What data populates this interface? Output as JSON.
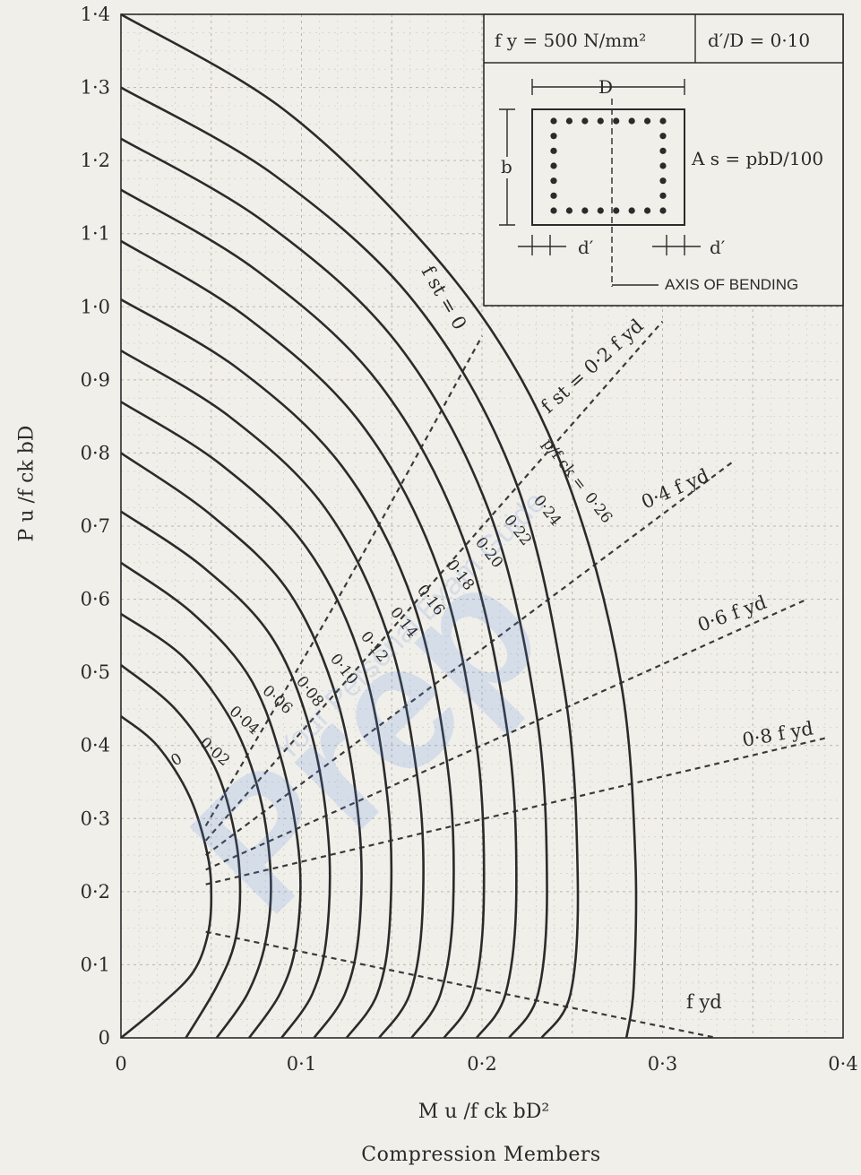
{
  "chart_data": {
    "type": "line",
    "title": "",
    "xlabel": "M_u/f_ck bD²",
    "ylabel": "P_u/f_ck bD",
    "xlim": [
      0,
      0.4
    ],
    "ylim": [
      0,
      1.4
    ],
    "x_ticks": [
      "0",
      "0·1",
      "0·2",
      "0·3",
      "0·4"
    ],
    "y_ticks": [
      "0",
      "0·1",
      "0·2",
      "0·3",
      "0·4",
      "0·5",
      "0·6",
      "0·7",
      "0·8",
      "0·9",
      "1·0",
      "1·1",
      "1·2",
      "1·3",
      "1·4"
    ],
    "grid": true,
    "series": [
      {
        "name": "0",
        "points": [
          [
            0,
            0.44
          ],
          [
            0.02,
            0.4
          ],
          [
            0.038,
            0.33
          ],
          [
            0.048,
            0.25
          ],
          [
            0.05,
            0.19
          ],
          [
            0.048,
            0.14
          ],
          [
            0.04,
            0.09
          ],
          [
            0.022,
            0.045
          ],
          [
            0,
            0
          ]
        ]
      },
      {
        "name": "0·02",
        "points": [
          [
            0,
            0.51
          ],
          [
            0.03,
            0.45
          ],
          [
            0.052,
            0.37
          ],
          [
            0.063,
            0.28
          ],
          [
            0.066,
            0.2
          ],
          [
            0.063,
            0.13
          ],
          [
            0.053,
            0.07
          ],
          [
            0.036,
            0
          ]
        ]
      },
      {
        "name": "0·04",
        "points": [
          [
            0,
            0.58
          ],
          [
            0.035,
            0.52
          ],
          [
            0.062,
            0.43
          ],
          [
            0.077,
            0.33
          ],
          [
            0.083,
            0.22
          ],
          [
            0.08,
            0.13
          ],
          [
            0.07,
            0.06
          ],
          [
            0.053,
            0
          ]
        ]
      },
      {
        "name": "0·06",
        "points": [
          [
            0,
            0.65
          ],
          [
            0.04,
            0.58
          ],
          [
            0.072,
            0.49
          ],
          [
            0.09,
            0.37
          ],
          [
            0.099,
            0.24
          ],
          [
            0.097,
            0.13
          ],
          [
            0.088,
            0.06
          ],
          [
            0.071,
            0
          ]
        ]
      },
      {
        "name": "0·08",
        "points": [
          [
            0,
            0.72
          ],
          [
            0.045,
            0.645
          ],
          [
            0.083,
            0.55
          ],
          [
            0.105,
            0.42
          ],
          [
            0.115,
            0.27
          ],
          [
            0.114,
            0.14
          ],
          [
            0.106,
            0.06
          ],
          [
            0.089,
            0
          ]
        ]
      },
      {
        "name": "0·10",
        "points": [
          [
            0,
            0.8
          ],
          [
            0.05,
            0.715
          ],
          [
            0.093,
            0.61
          ],
          [
            0.12,
            0.46
          ],
          [
            0.132,
            0.29
          ],
          [
            0.132,
            0.15
          ],
          [
            0.124,
            0.06
          ],
          [
            0.107,
            0
          ]
        ]
      },
      {
        "name": "0·12",
        "points": [
          [
            0,
            0.87
          ],
          [
            0.055,
            0.785
          ],
          [
            0.103,
            0.67
          ],
          [
            0.134,
            0.51
          ],
          [
            0.148,
            0.32
          ],
          [
            0.149,
            0.16
          ],
          [
            0.142,
            0.06
          ],
          [
            0.125,
            0
          ]
        ]
      },
      {
        "name": "0·14",
        "points": [
          [
            0,
            0.94
          ],
          [
            0.06,
            0.85
          ],
          [
            0.113,
            0.725
          ],
          [
            0.148,
            0.55
          ],
          [
            0.165,
            0.34
          ],
          [
            0.167,
            0.17
          ],
          [
            0.16,
            0.06
          ],
          [
            0.143,
            0
          ]
        ]
      },
      {
        "name": "0·16",
        "points": [
          [
            0,
            1.01
          ],
          [
            0.065,
            0.915
          ],
          [
            0.123,
            0.78
          ],
          [
            0.162,
            0.595
          ],
          [
            0.181,
            0.37
          ],
          [
            0.184,
            0.18
          ],
          [
            0.177,
            0.06
          ],
          [
            0.161,
            0
          ]
        ]
      },
      {
        "name": "0·18",
        "points": [
          [
            0,
            1.09
          ],
          [
            0.07,
            0.985
          ],
          [
            0.133,
            0.84
          ],
          [
            0.176,
            0.64
          ],
          [
            0.197,
            0.4
          ],
          [
            0.201,
            0.19
          ],
          [
            0.195,
            0.06
          ],
          [
            0.179,
            0
          ]
        ]
      },
      {
        "name": "0·20",
        "points": [
          [
            0,
            1.16
          ],
          [
            0.075,
            1.05
          ],
          [
            0.143,
            0.895
          ],
          [
            0.19,
            0.68
          ],
          [
            0.214,
            0.42
          ],
          [
            0.219,
            0.2
          ],
          [
            0.213,
            0.06
          ],
          [
            0.197,
            0
          ]
        ]
      },
      {
        "name": "0·22",
        "points": [
          [
            0,
            1.23
          ],
          [
            0.08,
            1.115
          ],
          [
            0.153,
            0.95
          ],
          [
            0.204,
            0.72
          ],
          [
            0.23,
            0.445
          ],
          [
            0.236,
            0.21
          ],
          [
            0.231,
            0.06
          ],
          [
            0.215,
            0
          ]
        ]
      },
      {
        "name": "0·24",
        "points": [
          [
            0,
            1.3
          ],
          [
            0.085,
            1.18
          ],
          [
            0.163,
            1.005
          ],
          [
            0.218,
            0.765
          ],
          [
            0.246,
            0.47
          ],
          [
            0.253,
            0.22
          ],
          [
            0.249,
            0.06
          ],
          [
            0.233,
            0
          ]
        ]
      },
      {
        "name": "0·26",
        "points": [
          [
            0,
            1.4
          ],
          [
            0.09,
            1.27
          ],
          [
            0.17,
            1.08
          ],
          [
            0.222,
            0.9
          ],
          [
            0.256,
            0.7
          ],
          [
            0.278,
            0.47
          ],
          [
            0.285,
            0.24
          ],
          [
            0.284,
            0.07
          ],
          [
            0.28,
            0
          ]
        ]
      }
    ],
    "curve_label_text": {
      "p0": "0",
      "p02": "0·02",
      "p04": "0·04",
      "p06": "0·06",
      "p08": "0·08",
      "p10": "0·10",
      "p12": "0·12",
      "p14": "0·14",
      "p16": "0·16",
      "p18": "0·18",
      "p20": "0·20",
      "p22": "0·22",
      "p24": "0·24",
      "p26": "0·26"
    },
    "stress_lines": [
      {
        "name": "f_st = 0",
        "points": [
          [
            0.047,
            0.29
          ],
          [
            0.12,
            0.6
          ],
          [
            0.2,
            0.96
          ]
        ]
      },
      {
        "name": "0·2 f_yd",
        "points": [
          [
            0.047,
            0.27
          ],
          [
            0.3,
            0.98
          ]
        ]
      },
      {
        "name": "0·4 f_yd",
        "points": [
          [
            0.047,
            0.25
          ],
          [
            0.34,
            0.79
          ]
        ]
      },
      {
        "name": "0·6 f_yd",
        "points": [
          [
            0.047,
            0.23
          ],
          [
            0.38,
            0.6
          ]
        ]
      },
      {
        "name": "0·8 f_yd",
        "points": [
          [
            0.047,
            0.21
          ],
          [
            0.39,
            0.41
          ]
        ]
      },
      {
        "name": "f_yd",
        "points": [
          [
            0.047,
            0.145
          ],
          [
            0.33,
            0.0
          ]
        ]
      }
    ],
    "annotations": {
      "fst0": "f st = 0",
      "fst02": "f st = 0·2 f yd",
      "p_over_fck": "p/f ck =",
      "f04": "0·4 f yd",
      "f06": "0·6 f yd",
      "f08": "0·8 f yd",
      "fyd": "f yd"
    }
  },
  "inset": {
    "fy": "f y = 500 N/mm²",
    "dd": "d′/D = 0·10",
    "dim_D": "D",
    "dim_b": "b",
    "dprime_left": "d′",
    "dprime_right": "d′",
    "as_text": "A s = pbD/100",
    "axis_text": "AXIS OF BENDING"
  },
  "x_axis_title": "M u /f ck bD²",
  "y_axis_title": "P u /f ck bD",
  "caption": "Compression Members",
  "watermark": {
    "main": "Prep",
    "sub": "Your Personal Exam Guide"
  }
}
